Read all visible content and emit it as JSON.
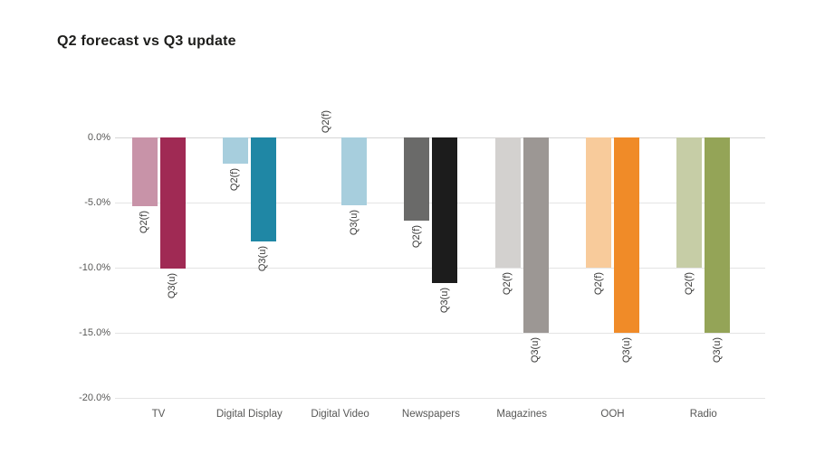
{
  "title": "Q2 forecast vs Q3 update",
  "chart_data": {
    "type": "bar",
    "title": "Q2 forecast vs Q3 update",
    "orientation": "vertical, bars extend downward (negative values)",
    "categories": [
      "TV",
      "Digital Display",
      "Digital Video",
      "Newspapers",
      "Magazines",
      "OOH",
      "Radio"
    ],
    "series": [
      {
        "name": "Q2(f)",
        "values": [
          -5.3,
          -2.0,
          0.0,
          -6.4,
          -10.0,
          -10.0,
          -10.0
        ],
        "colors": [
          "#c893a8",
          "#a7cedd",
          "#a7cedd",
          "#6a6a69",
          "#d3d1cf",
          "#f8cb9b",
          "#c6cda6"
        ]
      },
      {
        "name": "Q3(u)",
        "values": [
          -10.1,
          -8.0,
          -5.2,
          -11.2,
          -15.0,
          -15.0,
          -15.0
        ],
        "colors": [
          "#a02a54",
          "#1f87a5",
          "#a7cedd",
          "#1c1c1c",
          "#9c9794",
          "#f08b28",
          "#94a457"
        ]
      }
    ],
    "ylim": [
      -20,
      0
    ],
    "yticks": [
      {
        "label": "0.0%",
        "value": 0
      },
      {
        "label": "-5.0%",
        "value": -5
      },
      {
        "label": "-10.0%",
        "value": -10
      },
      {
        "label": "-15.0%",
        "value": -15
      },
      {
        "label": "-20.0%",
        "value": -20
      }
    ],
    "grid": true,
    "legend": "none",
    "bar_labels": "series name rotated 90deg, placed just past end of each bar (above axis when value is 0)"
  }
}
